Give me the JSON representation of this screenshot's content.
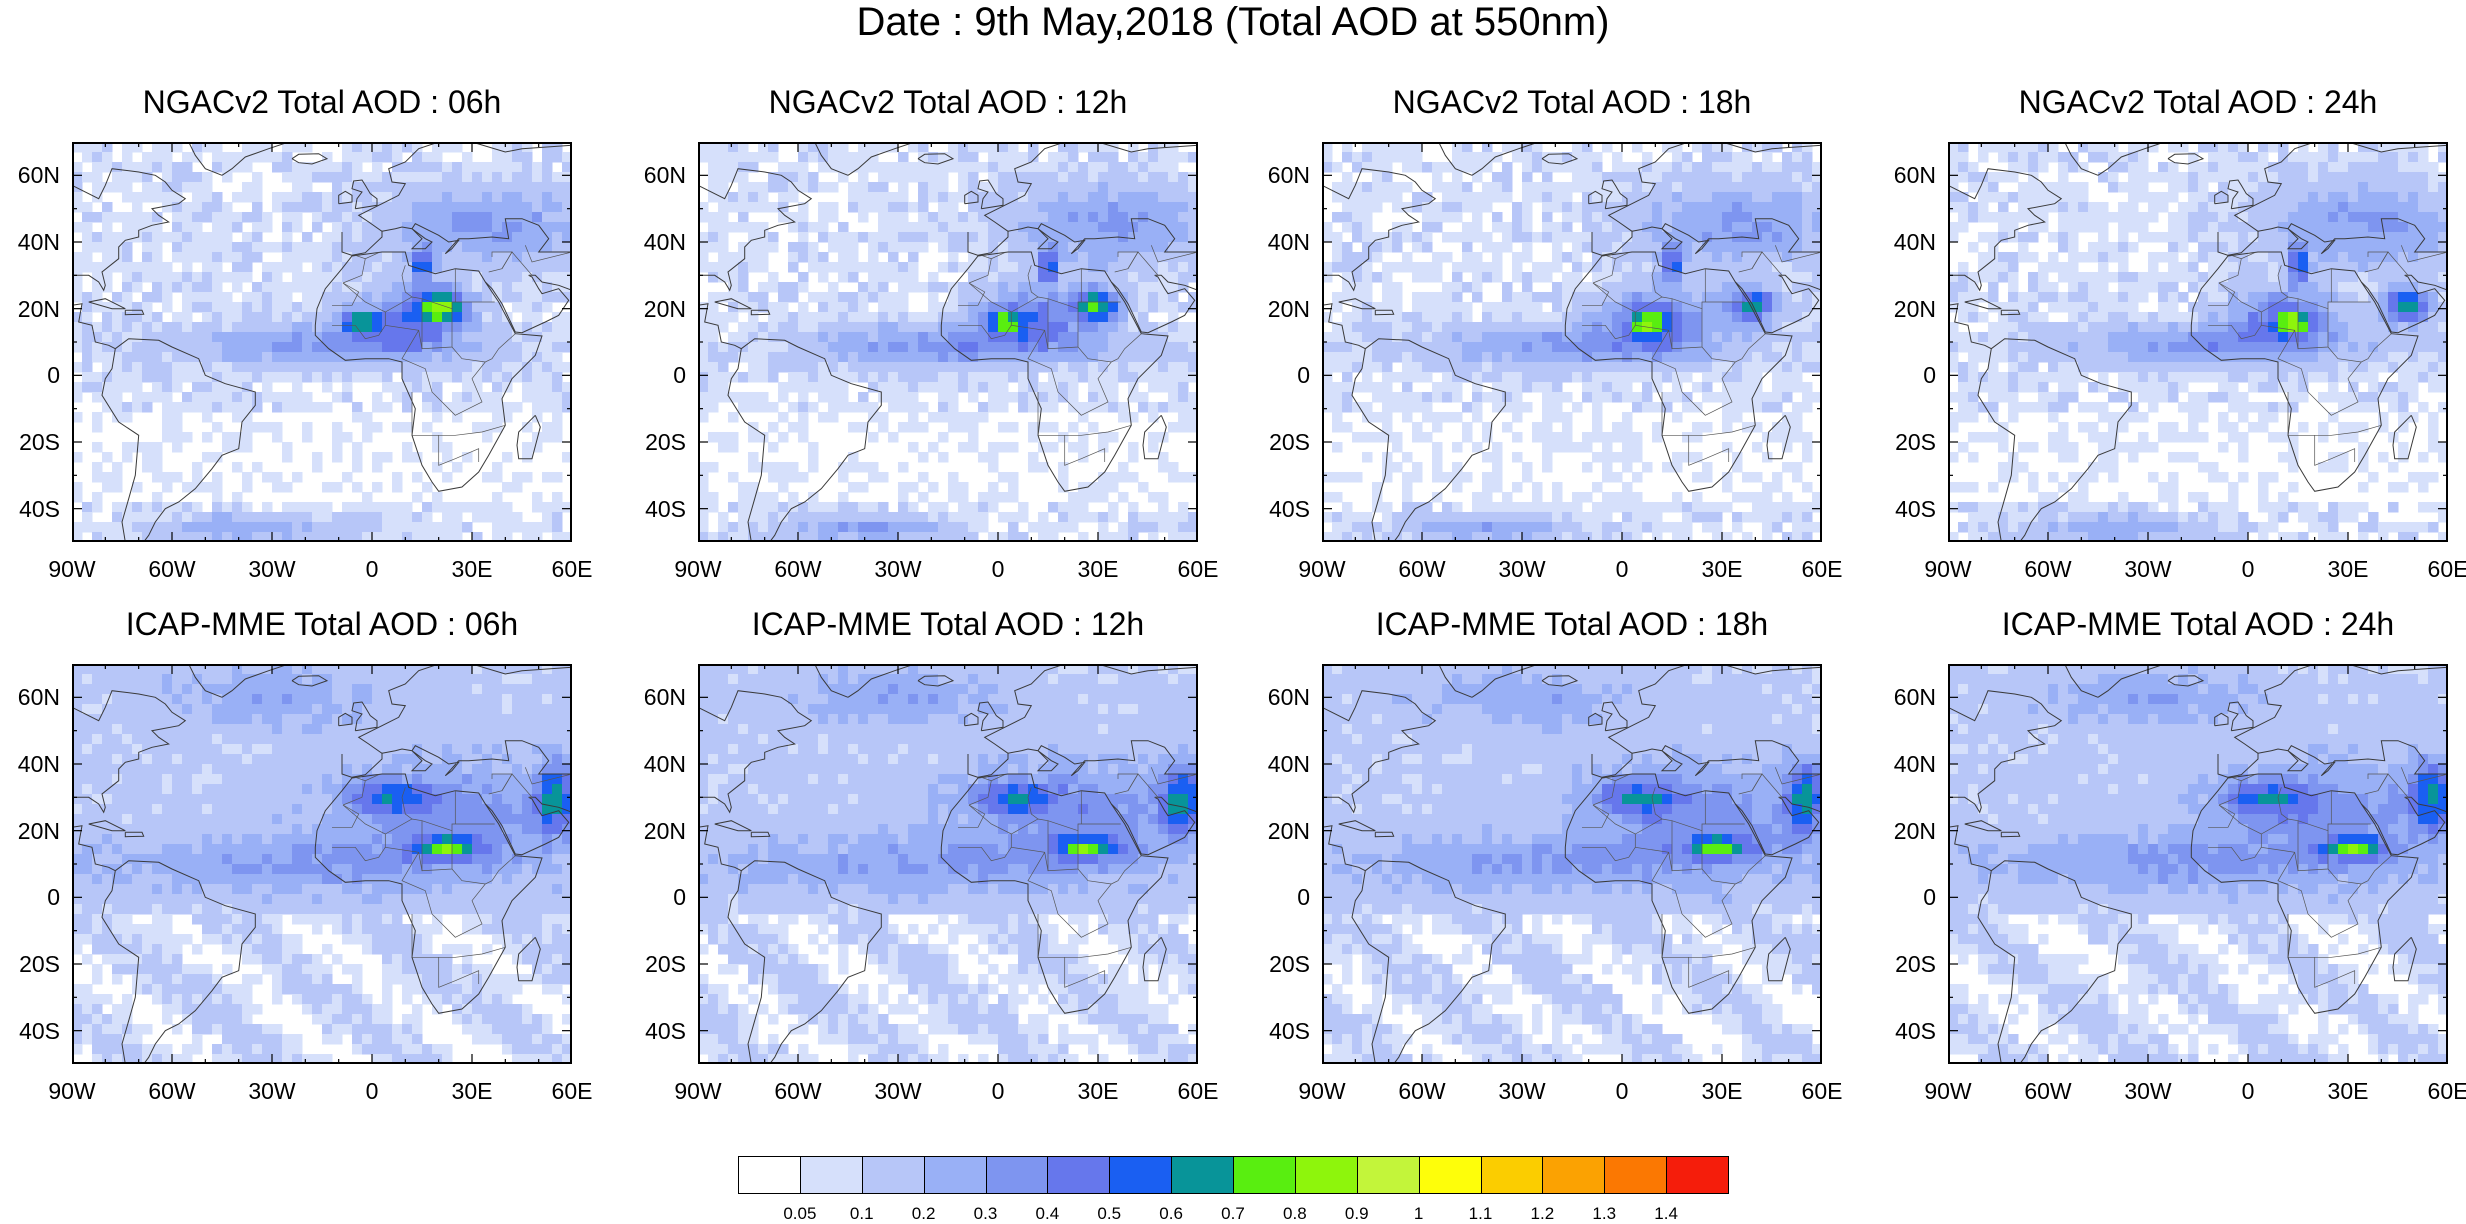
{
  "title": "Date : 9th May,2018 (Total AOD at 550nm)",
  "panels": [
    {
      "title": "NGACv2 Total AOD : 06h"
    },
    {
      "title": "NGACv2 Total AOD : 12h"
    },
    {
      "title": "NGACv2 Total AOD : 18h"
    },
    {
      "title": "NGACv2 Total AOD : 24h"
    },
    {
      "title": "ICAP-MME Total AOD : 06h"
    },
    {
      "title": "ICAP-MME Total AOD : 12h"
    },
    {
      "title": "ICAP-MME Total AOD : 18h"
    },
    {
      "title": "ICAP-MME Total AOD : 24h"
    }
  ],
  "map_extent": {
    "lon": [
      -90,
      60
    ],
    "lat": [
      -50,
      70
    ]
  },
  "lat_ticks": [
    {
      "label": "60N",
      "value": 60
    },
    {
      "label": "40N",
      "value": 40
    },
    {
      "label": "20N",
      "value": 20
    },
    {
      "label": "0",
      "value": 0
    },
    {
      "label": "20S",
      "value": -20
    },
    {
      "label": "40S",
      "value": -40
    }
  ],
  "lon_ticks": [
    {
      "label": "90W",
      "value": -90
    },
    {
      "label": "60W",
      "value": -60
    },
    {
      "label": "30W",
      "value": -30
    },
    {
      "label": "0",
      "value": 0
    },
    {
      "label": "30E",
      "value": 30
    },
    {
      "label": "60E",
      "value": 60
    }
  ],
  "colorbar": {
    "labels": [
      "0.05",
      "0.1",
      "0.2",
      "0.3",
      "0.4",
      "0.5",
      "0.6",
      "0.7",
      "0.8",
      "0.9",
      "1",
      "1.1",
      "1.2",
      "1.3",
      "1.4"
    ],
    "colors": [
      "#ffffff",
      "#d6e0fb",
      "#b7c6f8",
      "#99b0f6",
      "#7e95f0",
      "#6677ec",
      "#1a5ff2",
      "#089499",
      "#59ee10",
      "#8ef50c",
      "#c3f53a",
      "#fefe0a",
      "#fbcd00",
      "#fba202",
      "#fb7802",
      "#f51d0b"
    ]
  },
  "colors": {
    "land_outline": "#3a3a3a",
    "background_low": "#d6e0fb",
    "background_mid": "#b7c6f8"
  }
}
